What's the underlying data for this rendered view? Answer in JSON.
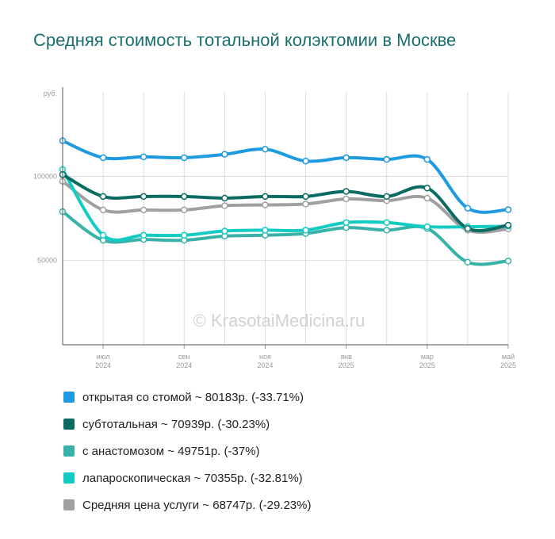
{
  "chart_data": {
    "type": "line",
    "title": "Средняя стоимость тотальной колэктомии в Москве",
    "ylabel": "руб.",
    "ylim": [
      0,
      150000
    ],
    "yticks": [
      {
        "value": 50000,
        "label": "50000"
      },
      {
        "value": 100000,
        "label": "100000"
      }
    ],
    "xlim": [
      0,
      11
    ],
    "x": [
      0,
      1,
      2,
      3,
      4,
      5,
      6,
      7,
      8,
      9,
      10,
      11
    ],
    "xticks": [
      {
        "x": 1,
        "month": "июл",
        "year": "2024"
      },
      {
        "x": 3,
        "month": "сен",
        "year": "2024"
      },
      {
        "x": 5,
        "month": "ноя",
        "year": "2024"
      },
      {
        "x": 7,
        "month": "янв",
        "year": "2025"
      },
      {
        "x": 9,
        "month": "мар",
        "year": "2025"
      },
      {
        "x": 11,
        "month": "май",
        "year": "2025"
      }
    ],
    "grid": true,
    "watermark": "© KrasotaiMedicina.ru",
    "series": [
      {
        "name": "открытая со стомой",
        "legend": "открытая со стомой ~ 80183р. (-33.71%)",
        "color": "#1e9be0",
        "values": [
          121000,
          111000,
          111500,
          111000,
          113000,
          116000,
          109000,
          111000,
          110000,
          110000,
          81000,
          80183
        ]
      },
      {
        "name": "субтотальная",
        "legend": "субтотальная ~ 70939р. (-30.23%)",
        "color": "#0a6b62",
        "values": [
          101000,
          88000,
          88000,
          88000,
          87000,
          88000,
          88000,
          91000,
          88000,
          93000,
          69000,
          70939
        ]
      },
      {
        "name": "с анастомозом",
        "legend": "с анастомозом ~ 49751р. (-37%)",
        "color": "#38b2a8",
        "values": [
          79000,
          62000,
          62500,
          62000,
          64500,
          65000,
          66000,
          69500,
          68000,
          69000,
          49000,
          49751
        ]
      },
      {
        "name": "лапароскопическая",
        "legend": "лапароскопическая ~ 70355р. (-32.81%)",
        "color": "#12ccc4",
        "values": [
          104000,
          65000,
          65000,
          65000,
          67500,
          68000,
          68000,
          72500,
          72500,
          70000,
          70000,
          70355
        ]
      },
      {
        "name": "Средняя цена услуги",
        "legend": "Средняя цена услуги ~ 68747р. (-29.23%)",
        "color": "#a0a0a0",
        "values": [
          97000,
          80000,
          80000,
          80000,
          82500,
          83000,
          83500,
          86500,
          85500,
          87000,
          68000,
          68747
        ]
      }
    ]
  }
}
